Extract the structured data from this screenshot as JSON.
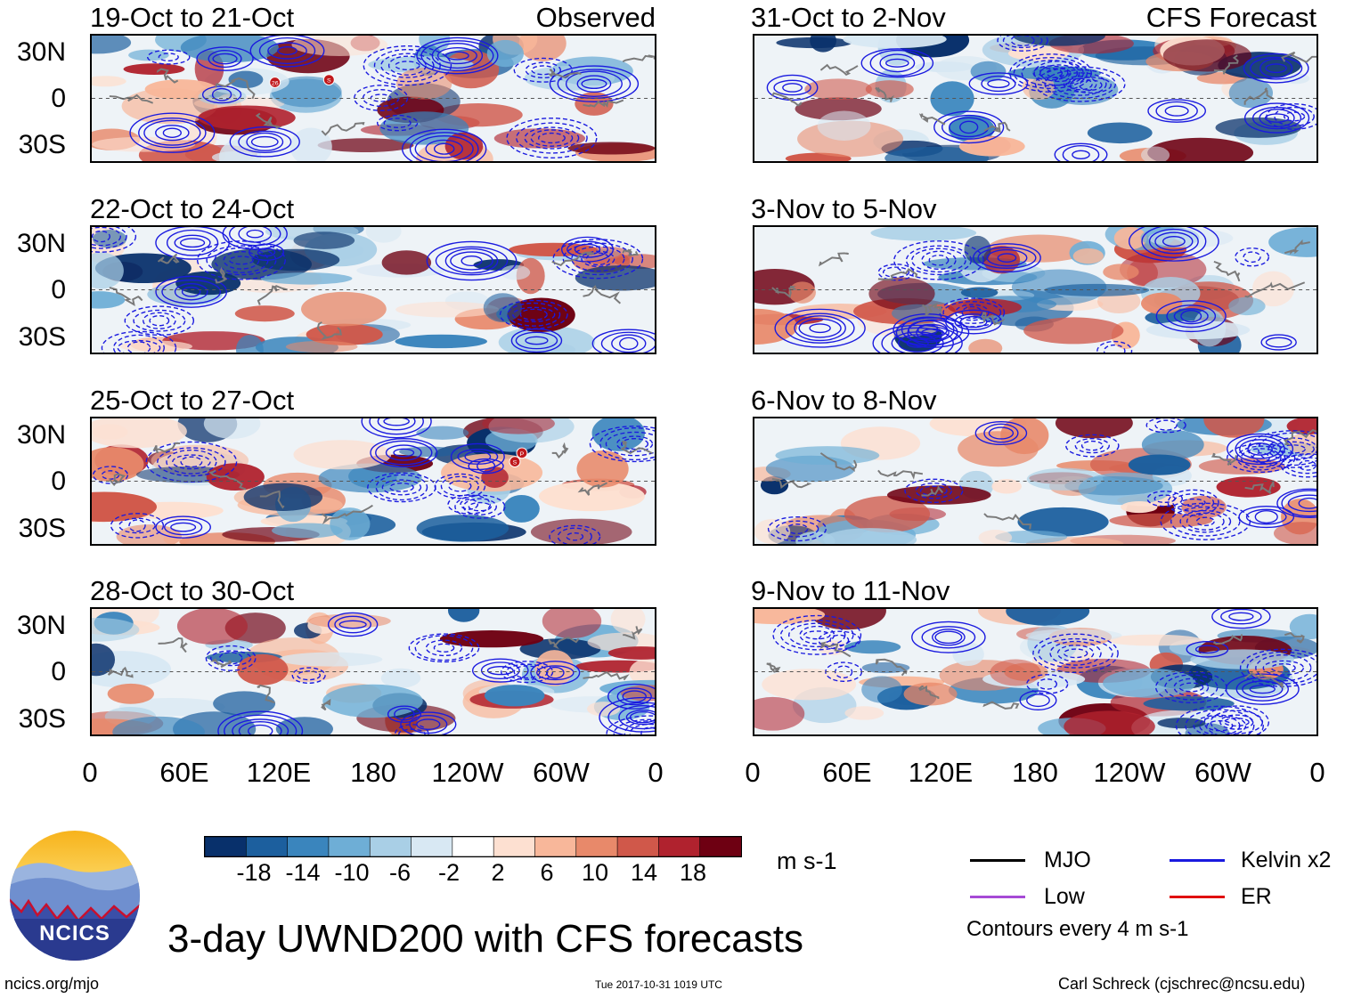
{
  "panels": [
    {
      "id": "p1",
      "title": "19-Oct to 21-Oct",
      "label": "Observed"
    },
    {
      "id": "p2",
      "title": "22-Oct to 24-Oct",
      "label": ""
    },
    {
      "id": "p3",
      "title": "25-Oct to 27-Oct",
      "label": ""
    },
    {
      "id": "p4",
      "title": "28-Oct to 30-Oct",
      "label": ""
    },
    {
      "id": "p5",
      "title": "31-Oct to 2-Nov",
      "label": "CFS Forecast"
    },
    {
      "id": "p6",
      "title": "3-Nov to 5-Nov",
      "label": ""
    },
    {
      "id": "p7",
      "title": "6-Nov to 8-Nov",
      "label": ""
    },
    {
      "id": "p8",
      "title": "9-Nov to 11-Nov",
      "label": ""
    }
  ],
  "lat_labels": [
    "30N",
    "0",
    "30S"
  ],
  "lon_labels": [
    "0",
    "60E",
    "120E",
    "180",
    "120W",
    "60W",
    "0"
  ],
  "storm_markers": {
    "p1": [
      "26",
      "S"
    ],
    "p3": [
      "P",
      "S"
    ]
  },
  "colorbar": {
    "colors": [
      "#08306b",
      "#1c5f9e",
      "#3a85bd",
      "#6eaed6",
      "#a9cfe6",
      "#d8e8f3",
      "#ffffff",
      "#fde0d1",
      "#f8b79a",
      "#e8896a",
      "#d0584a",
      "#b0222e",
      "#6e0012"
    ],
    "tick_labels": [
      "-18",
      "-14",
      "-10",
      "-6",
      "-2",
      "2",
      "6",
      "10",
      "14",
      "18"
    ],
    "units": "m s-1"
  },
  "legend": {
    "items": [
      {
        "label": "MJO",
        "color": "#000000"
      },
      {
        "label": "Kelvin x2",
        "color": "#1a1adf"
      },
      {
        "label": "Low",
        "color": "#a64ad6"
      },
      {
        "label": "ER",
        "color": "#e01010"
      }
    ],
    "note": "Contours every 4 m s-1"
  },
  "logo": {
    "text": "NCICS"
  },
  "main_title": "3-day UWND200 with CFS forecasts",
  "footer": {
    "url": "ncics.org/mjo",
    "timestamp": "Tue 2017-10-31 1019 UTC",
    "credit": "Carl Schreck (cjschrec@ncsu.edu)"
  }
}
